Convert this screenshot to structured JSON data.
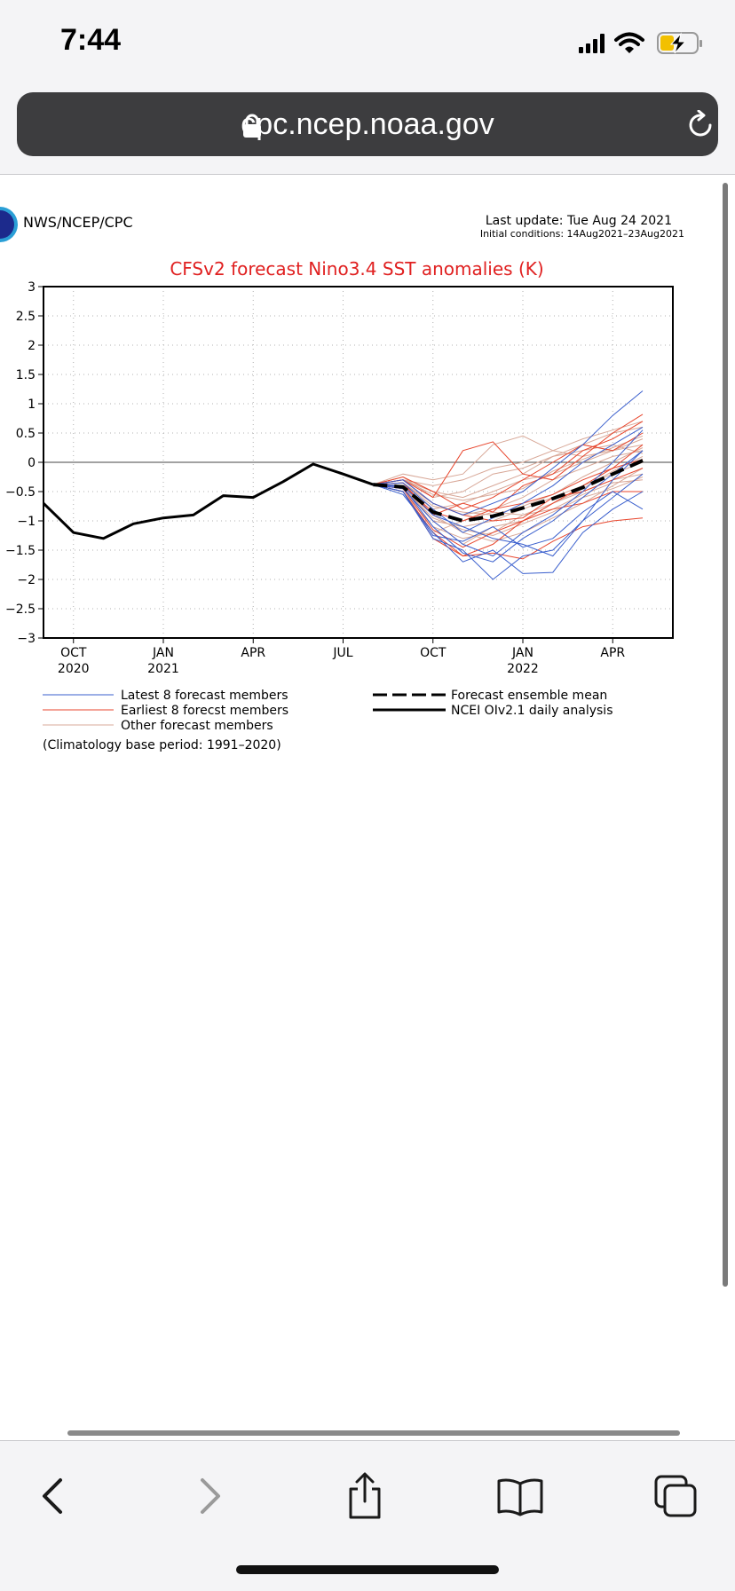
{
  "status_bar": {
    "time": "7:44"
  },
  "browser": {
    "url": "cpc.ncep.noaa.gov"
  },
  "figure": {
    "org": "NWS/NCEP/CPC",
    "last_update": "Last update: Tue Aug 24 2021",
    "initial_conditions": "Initial conditions: 14Aug2021–23Aug2021",
    "climatology_note": "(Climatology base period: 1991–2020)"
  },
  "chart_data": {
    "type": "line",
    "title": "CFSv2 forecast Nino3.4 SST anomalies (K)",
    "xlabel": "",
    "ylabel": "",
    "ylim": [
      -3,
      3
    ],
    "yticks": [
      3,
      2.5,
      2,
      1.5,
      1,
      0.5,
      0,
      -0.5,
      -1,
      -1.5,
      -2,
      -2.5,
      -3
    ],
    "x_tick_labels": [
      {
        "month": "OCT",
        "year": "2020"
      },
      {
        "month": "JAN",
        "year": "2021"
      },
      {
        "month": "APR",
        "year": ""
      },
      {
        "month": "JUL",
        "year": ""
      },
      {
        "month": "OCT",
        "year": ""
      },
      {
        "month": "JAN",
        "year": "2022"
      },
      {
        "month": "APR",
        "year": ""
      }
    ],
    "x_tick_dates": [
      "2020-10",
      "2021-01",
      "2021-04",
      "2021-07",
      "2021-10",
      "2022-01",
      "2022-04"
    ],
    "grid": true,
    "colors": {
      "latest": "#3a5fcd",
      "earliest": "#e8452c",
      "other": "#d8a898",
      "title": "#e02020"
    },
    "legend": [
      {
        "label": "Latest 8 forecast members",
        "style": "thin-blue"
      },
      {
        "label": "Earliest 8 forecst members",
        "style": "thin-red"
      },
      {
        "label": "Other forecast members",
        "style": "thin-pink"
      },
      {
        "label": "Forecast ensemble mean",
        "style": "thick-dashed-black"
      },
      {
        "label": "NCEI OIv2.1 daily analysis",
        "style": "thick-solid-black"
      }
    ],
    "analysis": {
      "name": "NCEI OIv2.1 daily analysis",
      "x": [
        "2020-09",
        "2020-10",
        "2020-11",
        "2020-12",
        "2021-01",
        "2021-02",
        "2021-03",
        "2021-04",
        "2021-05",
        "2021-06",
        "2021-07",
        "2021-08"
      ],
      "y": [
        -0.7,
        -1.2,
        -1.3,
        -1.05,
        -0.95,
        -0.9,
        -0.57,
        -0.6,
        -0.33,
        -0.03,
        -0.2,
        -0.38
      ]
    },
    "ensemble_mean": {
      "name": "Forecast ensemble mean",
      "x": [
        "2021-08",
        "2021-09",
        "2021-10",
        "2021-11",
        "2021-12",
        "2022-01",
        "2022-02",
        "2022-03",
        "2022-04",
        "2022-05"
      ],
      "y": [
        -0.38,
        -0.42,
        -0.85,
        -1.0,
        -0.92,
        -0.78,
        -0.62,
        -0.43,
        -0.2,
        0.03
      ]
    },
    "members_x": [
      "2021-08",
      "2021-09",
      "2021-10",
      "2021-11",
      "2021-12",
      "2022-01",
      "2022-02",
      "2022-03",
      "2022-04",
      "2022-05"
    ],
    "latest_members": [
      [
        -0.38,
        -0.5,
        -1.3,
        -1.5,
        -2.0,
        -1.6,
        -1.5,
        -1.0,
        -0.6,
        -0.2
      ],
      [
        -0.38,
        -0.55,
        -1.2,
        -1.7,
        -1.5,
        -1.9,
        -1.88,
        -1.2,
        -0.8,
        -0.5
      ],
      [
        -0.38,
        -0.4,
        -0.9,
        -1.1,
        -1.3,
        -1.4,
        -1.6,
        -1.0,
        -0.3,
        0.2
      ],
      [
        -0.38,
        -0.3,
        -0.7,
        -0.9,
        -0.7,
        -0.5,
        -0.1,
        0.3,
        0.8,
        1.22
      ],
      [
        -0.38,
        -0.45,
        -1.0,
        -1.4,
        -1.6,
        -1.2,
        -0.9,
        -0.5,
        0.0,
        0.55
      ],
      [
        -0.38,
        -0.5,
        -1.25,
        -1.35,
        -1.1,
        -1.45,
        -1.3,
        -0.85,
        -0.5,
        -0.8
      ],
      [
        -0.38,
        -0.35,
        -0.8,
        -1.2,
        -0.95,
        -0.7,
        -0.4,
        0.0,
        0.3,
        0.6
      ],
      [
        -0.38,
        -0.42,
        -1.1,
        -1.55,
        -1.7,
        -1.3,
        -1.0,
        -0.6,
        -0.2,
        0.2
      ]
    ],
    "earliest_members": [
      [
        -0.38,
        -0.3,
        -0.6,
        0.2,
        0.35,
        -0.2,
        -0.3,
        0.1,
        0.5,
        0.82
      ],
      [
        -0.38,
        -0.5,
        -1.2,
        -1.6,
        -1.55,
        -1.65,
        -1.35,
        -1.1,
        -1.0,
        -0.95
      ],
      [
        -0.38,
        -0.35,
        -0.9,
        -0.7,
        -0.85,
        -0.4,
        -0.2,
        0.2,
        0.4,
        0.7
      ],
      [
        -0.38,
        -0.45,
        -1.15,
        -1.45,
        -1.2,
        -1.0,
        -0.8,
        -0.7,
        -0.5,
        -0.5
      ],
      [
        -0.38,
        -0.25,
        -0.5,
        -0.8,
        -0.6,
        -0.3,
        0.0,
        0.3,
        0.2,
        0.5
      ],
      [
        -0.38,
        -0.4,
        -0.85,
        -1.0,
        -0.8,
        -0.7,
        -0.55,
        -0.3,
        -0.1,
        0.05
      ],
      [
        -0.38,
        -0.5,
        -1.3,
        -1.6,
        -1.4,
        -1.0,
        -0.7,
        -0.4,
        -0.1,
        0.3
      ],
      [
        -0.38,
        -0.3,
        -0.7,
        -0.9,
        -1.0,
        -0.95,
        -0.6,
        -0.5,
        -0.3,
        -0.1
      ]
    ],
    "other_members": [
      [
        -0.38,
        -0.2,
        -0.3,
        -0.2,
        0.3,
        0.45,
        0.2,
        0.1,
        0.2,
        0.3
      ],
      [
        -0.38,
        -0.3,
        -0.5,
        -0.6,
        -0.4,
        -0.2,
        0.1,
        0.3,
        0.5,
        0.6
      ],
      [
        -0.38,
        -0.35,
        -0.7,
        -0.9,
        -0.8,
        -0.6,
        -0.3,
        -0.1,
        0.1,
        0.2
      ],
      [
        -0.38,
        -0.45,
        -1.0,
        -1.1,
        -1.0,
        -0.8,
        -0.6,
        -0.4,
        -0.2,
        0.0
      ],
      [
        -0.38,
        -0.4,
        -0.8,
        -0.7,
        -0.5,
        -0.3,
        -0.2,
        0.0,
        0.2,
        0.4
      ],
      [
        -0.38,
        -0.5,
        -1.1,
        -1.3,
        -1.2,
        -0.9,
        -0.7,
        -0.5,
        -0.3,
        -0.2
      ],
      [
        -0.38,
        -0.3,
        -0.4,
        -0.3,
        -0.1,
        0.0,
        0.2,
        0.4,
        0.55,
        0.7
      ],
      [
        -0.38,
        -0.45,
        -0.9,
        -1.2,
        -1.35,
        -1.2,
        -0.95,
        -0.7,
        -0.4,
        -0.1
      ],
      [
        -0.38,
        -0.25,
        -0.6,
        -0.5,
        -0.2,
        -0.1,
        0.1,
        0.2,
        0.3,
        0.15
      ],
      [
        -0.38,
        -0.4,
        -1.0,
        -1.4,
        -1.1,
        -1.0,
        -0.7,
        -0.45,
        -0.15,
        0.1
      ],
      [
        -0.38,
        -0.35,
        -0.75,
        -0.85,
        -0.9,
        -0.75,
        -0.55,
        -0.25,
        0.0,
        0.25
      ],
      [
        -0.38,
        -0.5,
        -1.2,
        -1.0,
        -0.85,
        -0.9,
        -0.8,
        -0.55,
        -0.35,
        -0.3
      ],
      [
        -0.38,
        -0.3,
        -0.55,
        -0.65,
        -0.55,
        -0.45,
        -0.15,
        0.05,
        0.25,
        0.45
      ],
      [
        -0.38,
        -0.45,
        -0.95,
        -1.15,
        -1.25,
        -1.05,
        -0.85,
        -0.6,
        -0.45,
        -0.25
      ]
    ]
  }
}
